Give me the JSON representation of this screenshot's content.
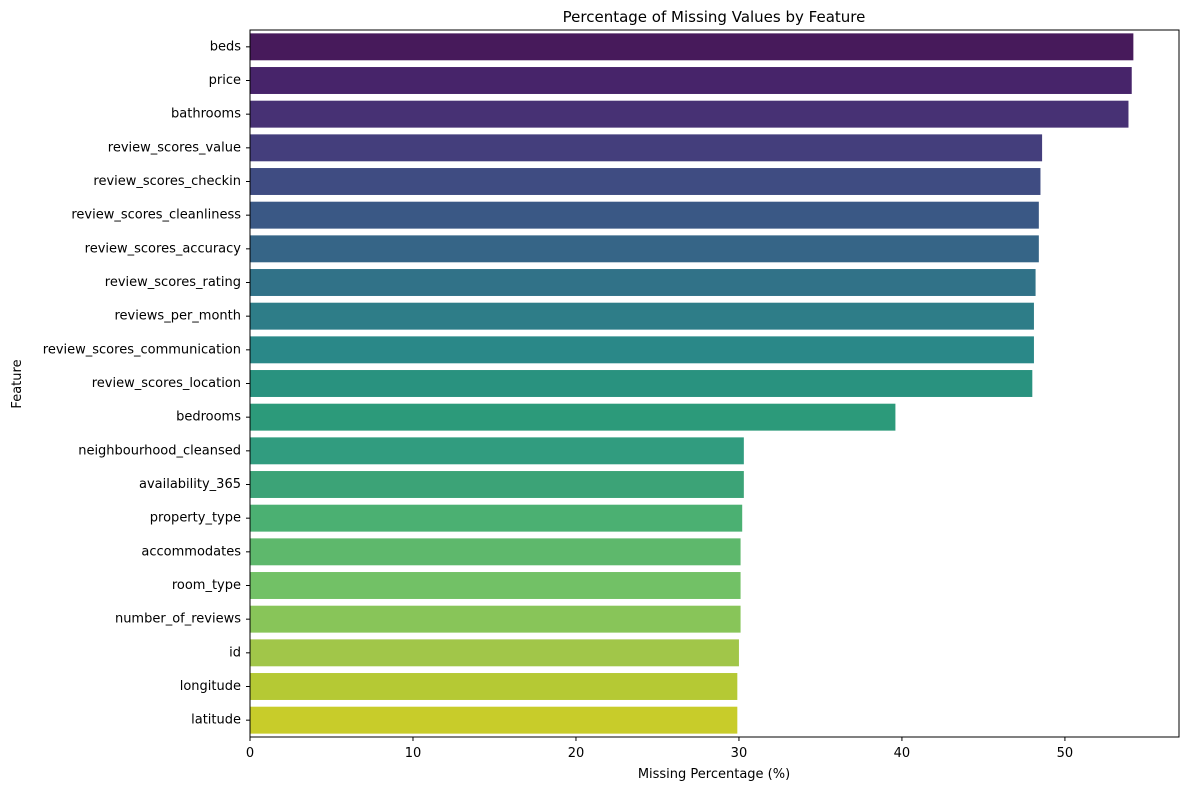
{
  "chart_data": {
    "type": "bar",
    "orientation": "horizontal",
    "title": "Percentage of Missing Values by Feature",
    "xlabel": "Missing Percentage (%)",
    "ylabel": "Feature",
    "xlim": [
      0,
      57
    ],
    "xticks": [
      0,
      10,
      20,
      30,
      40,
      50
    ],
    "grid": false,
    "categories": [
      "beds",
      "price",
      "bathrooms",
      "review_scores_value",
      "review_scores_checkin",
      "review_scores_cleanliness",
      "review_scores_accuracy",
      "review_scores_rating",
      "reviews_per_month",
      "review_scores_communication",
      "review_scores_location",
      "bedrooms",
      "neighbourhood_cleansed",
      "availability_365",
      "property_type",
      "accommodates",
      "room_type",
      "number_of_reviews",
      "id",
      "longitude",
      "latitude"
    ],
    "values": [
      54.2,
      54.1,
      53.9,
      48.6,
      48.5,
      48.4,
      48.4,
      48.2,
      48.1,
      48.1,
      48.0,
      39.6,
      30.3,
      30.3,
      30.2,
      30.1,
      30.1,
      30.1,
      30.0,
      29.9,
      29.9
    ],
    "colors": [
      "#471a5b",
      "#47246a",
      "#473174",
      "#443e7c",
      "#3f4c82",
      "#3a5885",
      "#366587",
      "#317288",
      "#2e7d88",
      "#2a8888",
      "#29927f",
      "#2c9a7a",
      "#319c7f",
      "#3ca377",
      "#4bb072",
      "#5eb86c",
      "#72c166",
      "#88c559",
      "#a1c649",
      "#b5c934",
      "#c8cc2a"
    ]
  }
}
